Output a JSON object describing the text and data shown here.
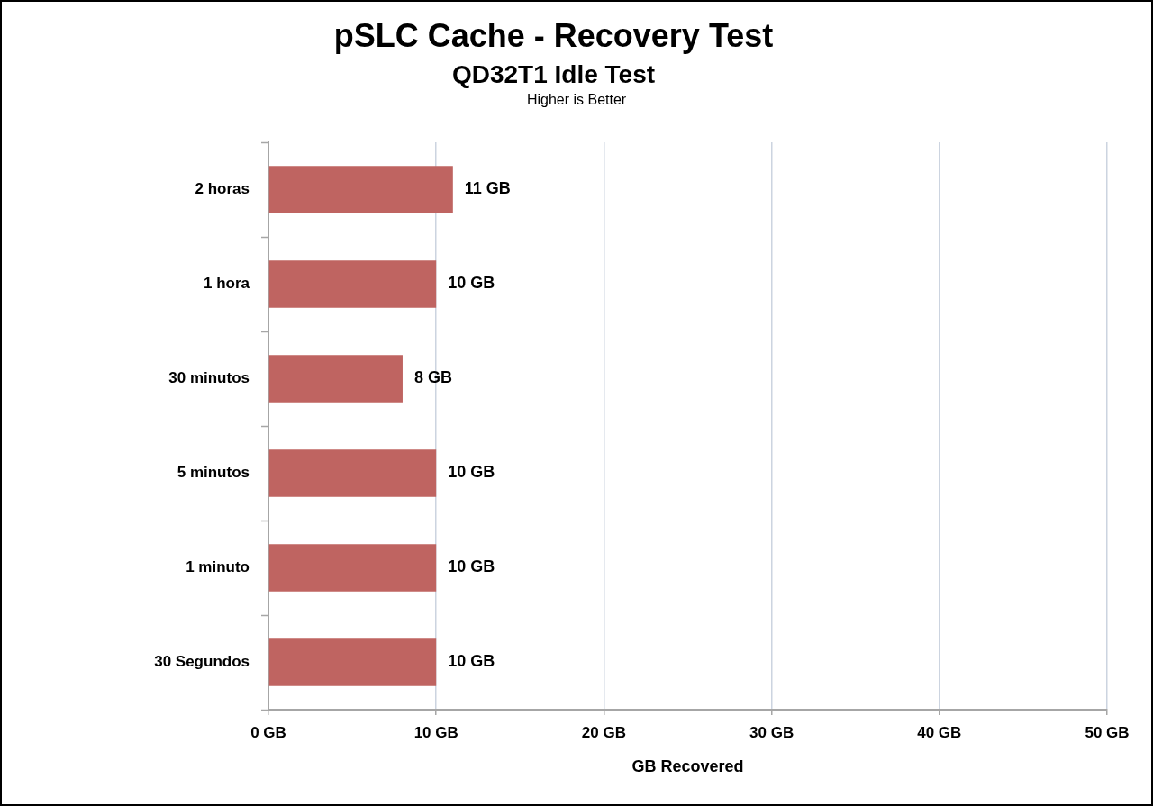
{
  "chart_data": {
    "type": "bar",
    "orientation": "horizontal",
    "title": "pSLC Cache - Recovery Test",
    "subtitle": "QD32T1 Idle Test",
    "annotations": [
      "Higher is Better"
    ],
    "xlabel": "GB Recovered",
    "categories": [
      "2 horas",
      "1 hora",
      "30 minutos",
      "5 minutos",
      "1 minuto",
      "30 Segundos"
    ],
    "values": [
      11,
      10,
      8,
      10,
      10,
      10
    ],
    "color": "#bf6461",
    "value_labels": [
      "11 GB",
      "10 GB",
      "8 GB",
      "10 GB",
      "10 GB",
      "10 GB"
    ],
    "xlim": [
      0,
      50
    ],
    "xticks": [
      {
        "value": 0,
        "label": "0 GB"
      },
      {
        "value": 10,
        "label": "10 GB"
      },
      {
        "value": 20,
        "label": "20 GB"
      },
      {
        "value": 30,
        "label": "30 GB"
      },
      {
        "value": 40,
        "label": "40 GB"
      },
      {
        "value": 50,
        "label": "50 GB"
      }
    ],
    "grid": "x"
  }
}
